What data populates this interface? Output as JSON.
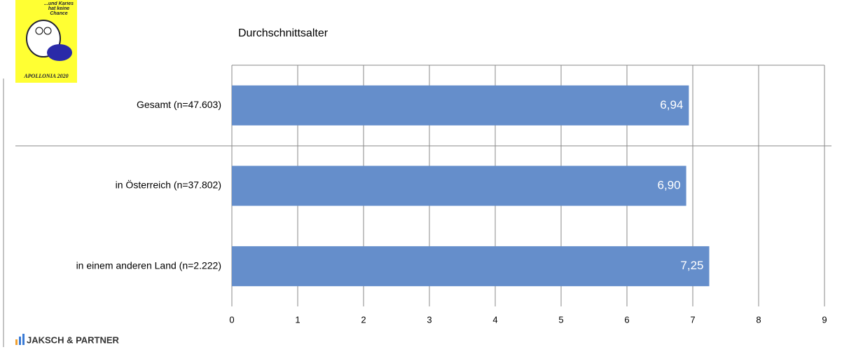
{
  "chart_data": {
    "type": "bar",
    "orientation": "horizontal",
    "title": "Durchschnittsalter",
    "categories": [
      "Gesamt (n=47.603)",
      "in Österreich (n=37.802)",
      "in einem anderen Land (n=2.222)"
    ],
    "values": [
      6.94,
      6.9,
      7.25
    ],
    "value_labels": [
      "6,94",
      "6,90",
      "7,25"
    ],
    "color": "#658ecb",
    "xlim": [
      0,
      9
    ],
    "xticks": [
      0,
      1,
      2,
      3,
      4,
      5,
      6,
      7,
      8,
      9
    ],
    "grid": true
  },
  "branding": {
    "badge_text": "...und Karies hat keine Chance",
    "badge_title": "APOLLONIA 2020",
    "footer": "JAKSCH & PARTNER"
  }
}
